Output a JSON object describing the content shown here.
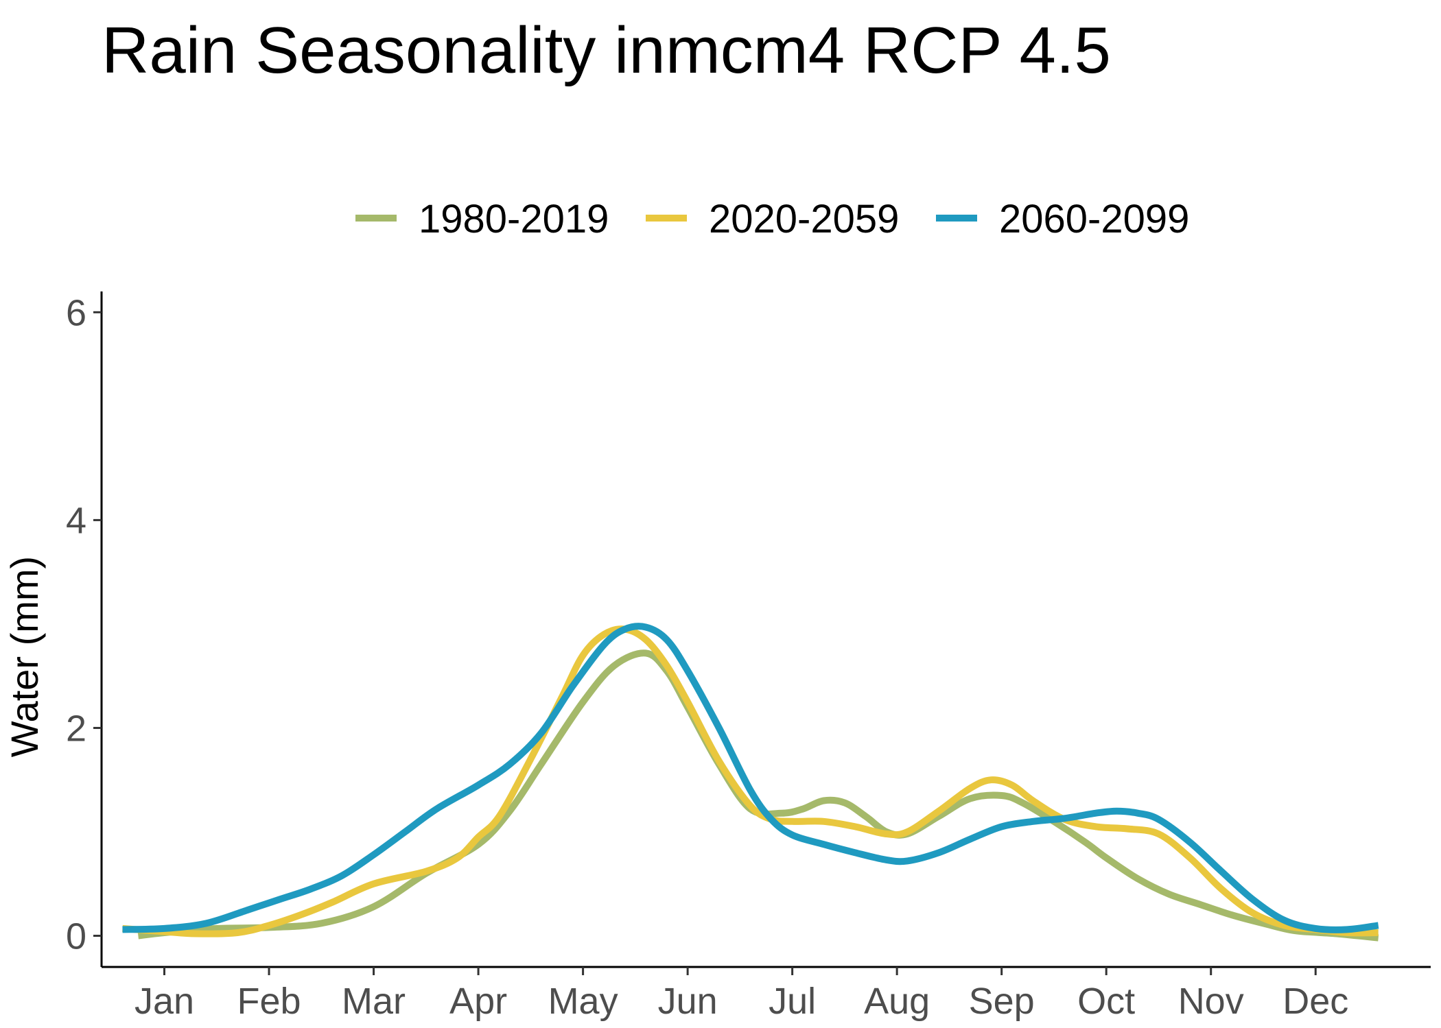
{
  "chart_data": {
    "type": "line",
    "title": "Rain Seasonality inmcm4 RCP 4.5",
    "xlabel": "",
    "ylabel": "Water (mm)",
    "ylim": [
      -0.3,
      6.2
    ],
    "xlim": [
      -0.6,
      12.1
    ],
    "yticks": [
      0,
      2,
      4,
      6
    ],
    "xticks": [
      {
        "label": "Jan",
        "pos": 0
      },
      {
        "label": "Feb",
        "pos": 1
      },
      {
        "label": "Mar",
        "pos": 2
      },
      {
        "label": "Apr",
        "pos": 3
      },
      {
        "label": "May",
        "pos": 4
      },
      {
        "label": "Jun",
        "pos": 5
      },
      {
        "label": "Jul",
        "pos": 6
      },
      {
        "label": "Aug",
        "pos": 7
      },
      {
        "label": "Sep",
        "pos": 8
      },
      {
        "label": "Oct",
        "pos": 9
      },
      {
        "label": "Nov",
        "pos": 10
      },
      {
        "label": "Dec",
        "pos": 11
      }
    ],
    "legend_position": "top",
    "grid": false,
    "series": [
      {
        "name": "1980-2019",
        "color": "#a5b96a",
        "points": [
          [
            -0.25,
            0.0
          ],
          [
            0,
            0.03
          ],
          [
            0.5,
            0.07
          ],
          [
            1,
            0.08
          ],
          [
            1.5,
            0.12
          ],
          [
            2,
            0.28
          ],
          [
            2.5,
            0.6
          ],
          [
            3,
            0.88
          ],
          [
            3.3,
            1.2
          ],
          [
            3.6,
            1.65
          ],
          [
            4,
            2.25
          ],
          [
            4.3,
            2.6
          ],
          [
            4.6,
            2.72
          ],
          [
            4.8,
            2.55
          ],
          [
            5,
            2.2
          ],
          [
            5.3,
            1.65
          ],
          [
            5.6,
            1.22
          ],
          [
            5.9,
            1.18
          ],
          [
            6.1,
            1.22
          ],
          [
            6.3,
            1.3
          ],
          [
            6.5,
            1.28
          ],
          [
            6.7,
            1.15
          ],
          [
            6.9,
            1.0
          ],
          [
            7.1,
            0.98
          ],
          [
            7.4,
            1.15
          ],
          [
            7.7,
            1.32
          ],
          [
            8,
            1.35
          ],
          [
            8.2,
            1.28
          ],
          [
            8.5,
            1.1
          ],
          [
            8.8,
            0.9
          ],
          [
            9,
            0.75
          ],
          [
            9.3,
            0.55
          ],
          [
            9.6,
            0.4
          ],
          [
            9.9,
            0.3
          ],
          [
            10.2,
            0.2
          ],
          [
            10.5,
            0.12
          ],
          [
            10.8,
            0.05
          ],
          [
            11.2,
            0.02
          ],
          [
            11.6,
            -0.02
          ]
        ]
      },
      {
        "name": "2020-2059",
        "color": "#e9c73e",
        "points": [
          [
            -0.4,
            0.07
          ],
          [
            0,
            0.04
          ],
          [
            0.3,
            0.02
          ],
          [
            0.7,
            0.03
          ],
          [
            1,
            0.1
          ],
          [
            1.3,
            0.2
          ],
          [
            1.6,
            0.32
          ],
          [
            2,
            0.5
          ],
          [
            2.5,
            0.62
          ],
          [
            2.8,
            0.75
          ],
          [
            3,
            0.95
          ],
          [
            3.2,
            1.15
          ],
          [
            3.5,
            1.7
          ],
          [
            3.8,
            2.3
          ],
          [
            4,
            2.7
          ],
          [
            4.2,
            2.9
          ],
          [
            4.4,
            2.95
          ],
          [
            4.6,
            2.85
          ],
          [
            4.8,
            2.6
          ],
          [
            5,
            2.25
          ],
          [
            5.3,
            1.68
          ],
          [
            5.6,
            1.25
          ],
          [
            5.8,
            1.12
          ],
          [
            6,
            1.1
          ],
          [
            6.3,
            1.1
          ],
          [
            6.6,
            1.05
          ],
          [
            6.9,
            0.98
          ],
          [
            7.1,
            1.0
          ],
          [
            7.4,
            1.2
          ],
          [
            7.7,
            1.42
          ],
          [
            7.9,
            1.5
          ],
          [
            8.1,
            1.45
          ],
          [
            8.3,
            1.3
          ],
          [
            8.6,
            1.12
          ],
          [
            8.9,
            1.05
          ],
          [
            9.2,
            1.03
          ],
          [
            9.5,
            0.98
          ],
          [
            9.8,
            0.75
          ],
          [
            10.1,
            0.45
          ],
          [
            10.4,
            0.22
          ],
          [
            10.7,
            0.1
          ],
          [
            11,
            0.06
          ],
          [
            11.3,
            0.03
          ],
          [
            11.6,
            0.03
          ]
        ]
      },
      {
        "name": "2060-2099",
        "color": "#1f9ac0",
        "points": [
          [
            -0.4,
            0.06
          ],
          [
            0,
            0.07
          ],
          [
            0.4,
            0.12
          ],
          [
            0.8,
            0.25
          ],
          [
            1.1,
            0.35
          ],
          [
            1.4,
            0.45
          ],
          [
            1.7,
            0.58
          ],
          [
            2,
            0.78
          ],
          [
            2.3,
            1.0
          ],
          [
            2.6,
            1.22
          ],
          [
            3,
            1.45
          ],
          [
            3.3,
            1.65
          ],
          [
            3.6,
            1.95
          ],
          [
            3.9,
            2.4
          ],
          [
            4.2,
            2.8
          ],
          [
            4.4,
            2.95
          ],
          [
            4.6,
            2.97
          ],
          [
            4.8,
            2.85
          ],
          [
            5,
            2.55
          ],
          [
            5.3,
            2.0
          ],
          [
            5.6,
            1.4
          ],
          [
            5.8,
            1.12
          ],
          [
            6,
            0.97
          ],
          [
            6.3,
            0.88
          ],
          [
            6.6,
            0.8
          ],
          [
            6.9,
            0.73
          ],
          [
            7.1,
            0.72
          ],
          [
            7.4,
            0.8
          ],
          [
            7.7,
            0.93
          ],
          [
            8,
            1.05
          ],
          [
            8.3,
            1.1
          ],
          [
            8.6,
            1.13
          ],
          [
            8.9,
            1.18
          ],
          [
            9.1,
            1.2
          ],
          [
            9.3,
            1.18
          ],
          [
            9.5,
            1.12
          ],
          [
            9.8,
            0.9
          ],
          [
            10.1,
            0.62
          ],
          [
            10.4,
            0.35
          ],
          [
            10.7,
            0.15
          ],
          [
            11,
            0.07
          ],
          [
            11.3,
            0.06
          ],
          [
            11.6,
            0.1
          ]
        ]
      }
    ]
  }
}
